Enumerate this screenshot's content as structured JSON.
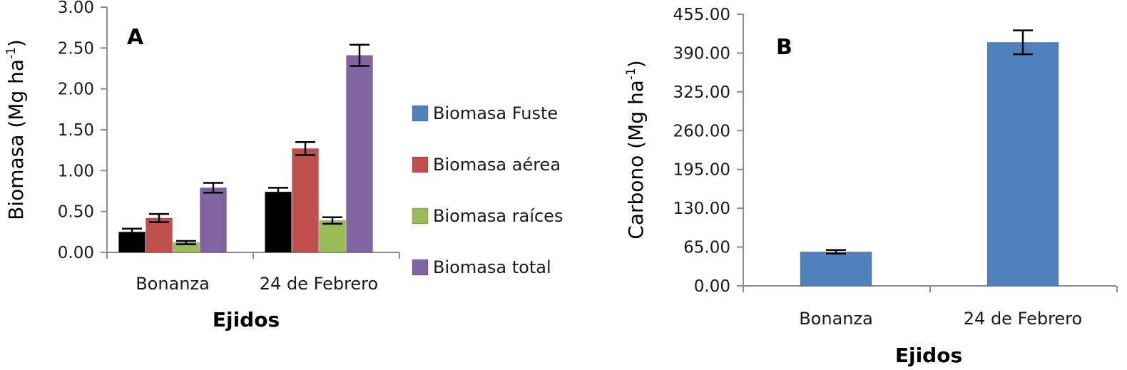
{
  "chart_data": [
    {
      "type": "bar",
      "panel": "A",
      "ylabel_main": "Biomasa (Mg ha",
      "ylabel_sup": "-1",
      "ylabel_end": ")",
      "xlabel": "Ejidos",
      "ylim": [
        0,
        3
      ],
      "ytick_labels": [
        "0.00",
        "0.50",
        "1.00",
        "1.50",
        "2.00",
        "2.50",
        "3.00"
      ],
      "categories": [
        "Bonanza",
        "24 de Febrero"
      ],
      "legend_position": "right",
      "series": [
        {
          "name": "Biomasa Fuste",
          "color": "#000000",
          "legend_color": "#4f81bd",
          "values": [
            0.25,
            0.74
          ],
          "errors": [
            0.04,
            0.05
          ]
        },
        {
          "name": "Biomasa aérea",
          "color": "#c0504d",
          "values": [
            0.42,
            1.27
          ],
          "errors": [
            0.05,
            0.08
          ]
        },
        {
          "name": "Biomasa raíces",
          "color": "#9bbb59",
          "values": [
            0.12,
            0.39
          ],
          "errors": [
            0.02,
            0.04
          ]
        },
        {
          "name": "Biomasa total",
          "color": "#8064a2",
          "values": [
            0.79,
            2.41
          ],
          "errors": [
            0.06,
            0.13
          ]
        }
      ]
    },
    {
      "type": "bar",
      "panel": "B",
      "ylabel_main": "Carbono (Mg ha",
      "ylabel_sup": "-1",
      "ylabel_end": ")",
      "xlabel": "Ejidos",
      "ylim": [
        0,
        455
      ],
      "ytick_labels": [
        "0.00",
        "65.00",
        "130.00",
        "195.00",
        "260.00",
        "325.00",
        "390.00",
        "455.00"
      ],
      "categories": [
        "Bonanza",
        "24 de Febrero"
      ],
      "series": [
        {
          "name": "Carbono",
          "color": "#4f81bd",
          "values": [
            57,
            408
          ],
          "errors": [
            3,
            20
          ]
        }
      ]
    }
  ]
}
